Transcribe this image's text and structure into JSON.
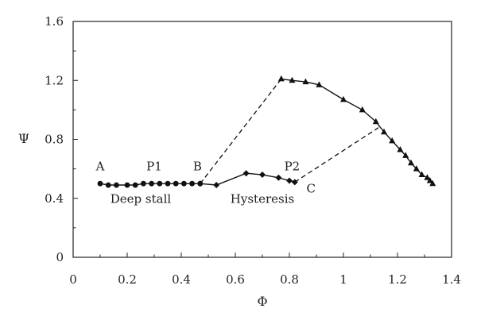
{
  "chart_data": {
    "type": "line",
    "xlabel": "Φ",
    "ylabel": "Ψ",
    "xlim": [
      0,
      1.4
    ],
    "ylim": [
      0,
      1.6
    ],
    "xticks": [
      "0",
      "0.2",
      "0.4",
      "0.6",
      "0.8",
      "1",
      "1.2",
      "1.4"
    ],
    "yticks": [
      "0",
      "0.4",
      "0.8",
      "1.2",
      "1.6"
    ],
    "xtick_values": [
      0,
      0.2,
      0.4,
      0.6,
      0.8,
      1.0,
      1.2,
      1.4
    ],
    "ytick_values": [
      0,
      0.4,
      0.8,
      1.2,
      1.6
    ],
    "grid": false,
    "series": [
      {
        "marker": "circle",
        "style": "solid",
        "x": [
          0.1,
          0.13,
          0.16,
          0.2,
          0.23,
          0.26,
          0.29,
          0.32,
          0.35,
          0.38,
          0.41,
          0.44,
          0.47
        ],
        "y": [
          0.5,
          0.49,
          0.49,
          0.49,
          0.49,
          0.5,
          0.5,
          0.5,
          0.5,
          0.5,
          0.5,
          0.5,
          0.5
        ]
      },
      {
        "marker": "diamond",
        "style": "solid",
        "x": [
          0.47,
          0.53,
          0.64,
          0.7,
          0.76,
          0.8,
          0.82
        ],
        "y": [
          0.5,
          0.49,
          0.57,
          0.56,
          0.54,
          0.52,
          0.51
        ]
      },
      {
        "marker": "triangle",
        "style": "solid",
        "x": [
          0.77,
          0.81,
          0.86,
          0.91,
          1.0,
          1.07,
          1.12,
          1.15,
          1.18,
          1.21,
          1.23,
          1.25,
          1.27,
          1.29,
          1.31,
          1.32,
          1.33
        ],
        "y": [
          1.21,
          1.2,
          1.19,
          1.17,
          1.07,
          1.0,
          0.92,
          0.85,
          0.79,
          0.73,
          0.69,
          0.64,
          0.6,
          0.56,
          0.54,
          0.52,
          0.5
        ]
      },
      {
        "style": "dashed",
        "x": [
          0.47,
          0.77
        ],
        "y": [
          0.5,
          1.21
        ]
      },
      {
        "style": "dashed",
        "x": [
          0.82,
          1.13
        ],
        "y": [
          0.51,
          0.88
        ]
      }
    ],
    "annotations": [
      {
        "text": "A",
        "x": 0.1,
        "y": 0.59
      },
      {
        "text": "P1",
        "x": 0.3,
        "y": 0.59
      },
      {
        "text": "B",
        "x": 0.46,
        "y": 0.59
      },
      {
        "text": "P2",
        "x": 0.81,
        "y": 0.59
      },
      {
        "text": "C",
        "x": 0.88,
        "y": 0.44
      },
      {
        "text": "Deep stall",
        "x": 0.25,
        "y": 0.37
      },
      {
        "text": "Hysteresis",
        "x": 0.7,
        "y": 0.37
      }
    ]
  }
}
